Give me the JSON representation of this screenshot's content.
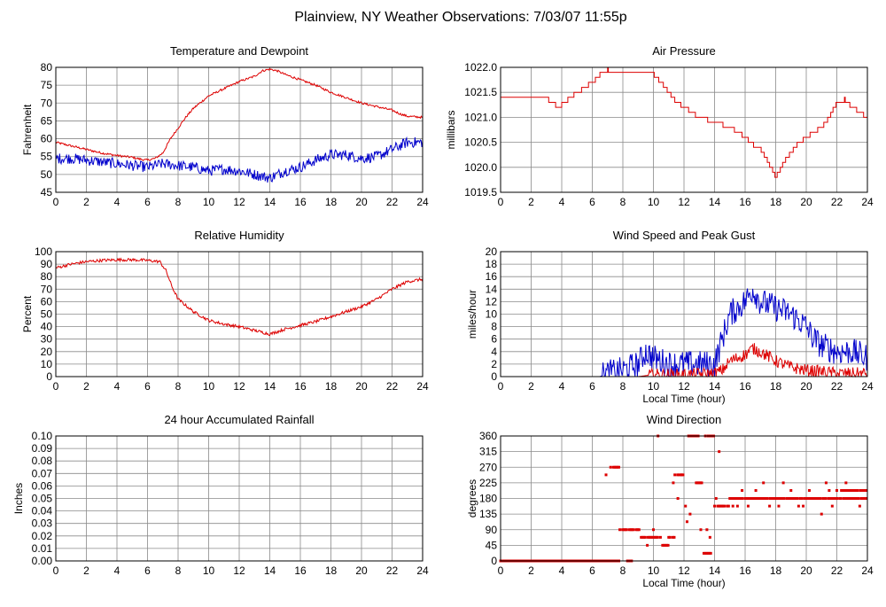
{
  "page_title": "Plainview, NY Weather Observations: 7/03/07 11:55p",
  "colors": {
    "primary": "#dd0000",
    "secondary": "#0000cc",
    "grid": "#8a8a8a",
    "frame": "#000000"
  },
  "chart_data": [
    {
      "id": "temp",
      "type": "line",
      "title": "Temperature and Dewpoint",
      "xlabel": "",
      "ylabel": "Fahrenheit",
      "xlim": [
        0,
        24
      ],
      "ylim": [
        45,
        80
      ],
      "xticks": [
        0,
        2,
        4,
        6,
        8,
        10,
        12,
        14,
        16,
        18,
        20,
        22,
        24
      ],
      "yticks": [
        45,
        50,
        55,
        60,
        65,
        70,
        75,
        80
      ],
      "ytick_labels": [
        "45",
        "50",
        "55",
        "60",
        "65",
        "70",
        "75",
        "80"
      ],
      "series": [
        {
          "color": "#dd0000",
          "noise": 0.3,
          "x": [
            0,
            1,
            2,
            3,
            4,
            5,
            5.5,
            6,
            6.5,
            7,
            7.5,
            8,
            8.5,
            9,
            10,
            11,
            12,
            13,
            13.5,
            14,
            14.5,
            15,
            16,
            17,
            18,
            19,
            20,
            21,
            22,
            22.5,
            23,
            24
          ],
          "y": [
            59,
            58,
            57,
            56,
            55.3,
            54.8,
            54.3,
            54,
            54.5,
            56,
            60,
            63,
            66,
            68.5,
            72,
            74,
            76,
            77.5,
            79,
            79.5,
            79,
            78,
            76.5,
            75,
            73,
            71.5,
            70,
            69,
            68,
            67,
            66.3,
            66
          ]
        },
        {
          "color": "#0000cc",
          "noise": 1.5,
          "x": [
            0,
            1,
            2,
            3,
            4,
            5,
            6,
            7,
            8,
            9,
            10,
            11,
            12,
            13,
            14,
            15,
            16,
            17,
            18,
            19,
            20,
            21,
            22,
            23,
            24
          ],
          "y": [
            54.5,
            54.5,
            54,
            53.5,
            53,
            52.5,
            52,
            53,
            52.5,
            52,
            51,
            51.5,
            51,
            50,
            49,
            51,
            52,
            54,
            55.5,
            55.5,
            54.5,
            55,
            57,
            59,
            59
          ]
        }
      ]
    },
    {
      "id": "pressure",
      "type": "line",
      "title": "Air Pressure",
      "xlabel": "",
      "ylabel": "millibars",
      "xlim": [
        0,
        24
      ],
      "ylim": [
        1019.5,
        1022
      ],
      "xticks": [
        0,
        2,
        4,
        6,
        8,
        10,
        12,
        14,
        16,
        18,
        20,
        22,
        24
      ],
      "yticks": [
        1019.5,
        1020,
        1020.5,
        1021,
        1021.5,
        1022
      ],
      "ytick_labels": [
        "1019.5",
        "1020.0",
        "1020.5",
        "1021.0",
        "1021.5",
        "1022.0"
      ],
      "series": [
        {
          "color": "#dd0000",
          "step": 0.1,
          "x": [
            0,
            3,
            3.3,
            3.8,
            4.2,
            4.6,
            5,
            5.5,
            6,
            6.5,
            7,
            9,
            10,
            10.5,
            11,
            11.5,
            12,
            12.5,
            13,
            13.5,
            14,
            14.5,
            15,
            15.5,
            16,
            16.5,
            17,
            17.3,
            17.7,
            18,
            18.2,
            18.5,
            19,
            19.5,
            20,
            20.5,
            21,
            21.5,
            22,
            22.5,
            23,
            23.5,
            24
          ],
          "y": [
            1021.4,
            1021.4,
            1021.3,
            1021.2,
            1021.3,
            1021.4,
            1021.5,
            1021.6,
            1021.7,
            1021.85,
            1021.95,
            1021.9,
            1021.85,
            1021.7,
            1021.5,
            1021.3,
            1021.2,
            1021.1,
            1021,
            1020.95,
            1020.9,
            1020.85,
            1020.8,
            1020.7,
            1020.6,
            1020.45,
            1020.35,
            1020.2,
            1020,
            1019.8,
            1019.9,
            1020.1,
            1020.3,
            1020.5,
            1020.6,
            1020.7,
            1020.8,
            1021,
            1021.3,
            1021.35,
            1021.2,
            1021.1,
            1021
          ]
        }
      ]
    },
    {
      "id": "humidity",
      "type": "line",
      "title": "Relative Humidity",
      "xlabel": "",
      "ylabel": "Percent",
      "xlim": [
        0,
        24
      ],
      "ylim": [
        0,
        100
      ],
      "xticks": [
        0,
        2,
        4,
        6,
        8,
        10,
        12,
        14,
        16,
        18,
        20,
        22,
        24
      ],
      "yticks": [
        0,
        10,
        20,
        30,
        40,
        50,
        60,
        70,
        80,
        90,
        100
      ],
      "ytick_labels": [
        "0",
        "10",
        "20",
        "30",
        "40",
        "50",
        "60",
        "70",
        "80",
        "90",
        "100"
      ],
      "series": [
        {
          "color": "#dd0000",
          "noise": 1.2,
          "x": [
            0,
            1,
            2,
            3,
            4,
            5,
            6,
            6.8,
            7.2,
            7.6,
            8,
            9,
            10,
            11,
            12,
            13,
            14,
            15,
            16,
            17,
            18,
            19,
            20,
            21,
            22,
            23,
            24
          ],
          "y": [
            87,
            90,
            92,
            93,
            93.5,
            93.5,
            93,
            92,
            85,
            72,
            62,
            52,
            45,
            42,
            40,
            37,
            34,
            38,
            41,
            44,
            48,
            52,
            56,
            62,
            70,
            76,
            78
          ]
        }
      ]
    },
    {
      "id": "wind",
      "type": "line",
      "title": "Wind Speed and Peak Gust",
      "xlabel": "Local Time (hour)",
      "ylabel": "miles/hour",
      "xlim": [
        0,
        24
      ],
      "ylim": [
        0,
        20
      ],
      "xticks": [
        0,
        2,
        4,
        6,
        8,
        10,
        12,
        14,
        16,
        18,
        20,
        22,
        24
      ],
      "yticks": [
        0,
        2,
        4,
        6,
        8,
        10,
        12,
        14,
        16,
        18,
        20
      ],
      "ytick_labels": [
        "0",
        "2",
        "4",
        "6",
        "8",
        "10",
        "12",
        "14",
        "16",
        "18",
        "20"
      ],
      "series": [
        {
          "color": "#0000cc",
          "noise": 2.2,
          "floor": 0,
          "x": [
            0,
            6.5,
            7,
            8,
            9,
            9.5,
            10,
            11,
            12,
            13,
            14,
            14.5,
            15,
            16,
            16.5,
            17,
            18,
            19,
            20,
            20.5,
            21,
            22,
            23,
            24
          ],
          "y": [
            0,
            0,
            0.5,
            1,
            2,
            4,
            3,
            2,
            2,
            2,
            2,
            6,
            10,
            12,
            14,
            12,
            11,
            10,
            8,
            6,
            5,
            4,
            4,
            3
          ]
        },
        {
          "color": "#dd0000",
          "noise": 1.0,
          "floor": 0,
          "x": [
            0,
            9,
            10,
            12,
            14,
            14.5,
            15,
            16,
            16.5,
            17,
            18,
            19,
            20,
            21,
            22,
            23,
            24
          ],
          "y": [
            0,
            0,
            0.3,
            0.3,
            0.5,
            1,
            2.5,
            3.5,
            4.5,
            4,
            2.5,
            1.5,
            1,
            0.8,
            0.5,
            0.5,
            0.5
          ]
        }
      ]
    },
    {
      "id": "rain",
      "type": "line",
      "title": "24 hour Accumulated Rainfall",
      "xlabel": "",
      "ylabel": "Inches",
      "xlim": [
        0,
        24
      ],
      "ylim": [
        0,
        0.1
      ],
      "xticks": [
        0,
        2,
        4,
        6,
        8,
        10,
        12,
        14,
        16,
        18,
        20,
        22,
        24
      ],
      "yticks": [
        0,
        0.01,
        0.02,
        0.03,
        0.04,
        0.05,
        0.06,
        0.07,
        0.08,
        0.09,
        0.1
      ],
      "ytick_labels": [
        "0.00",
        "0.01",
        "0.02",
        "0.03",
        "0.04",
        "0.05",
        "0.06",
        "0.07",
        "0.08",
        "0.09",
        "0.10"
      ],
      "series": [
        {
          "color": "#dd0000",
          "x": [
            0,
            24
          ],
          "y": [
            0,
            0
          ]
        }
      ]
    },
    {
      "id": "winddir",
      "type": "scatter",
      "title": "Wind Direction",
      "xlabel": "Local Time (hour)",
      "ylabel": "degrees",
      "xlim": [
        0,
        24
      ],
      "ylim": [
        0,
        360
      ],
      "xticks": [
        0,
        2,
        4,
        6,
        8,
        10,
        12,
        14,
        16,
        18,
        20,
        22,
        24
      ],
      "yticks": [
        0,
        45,
        90,
        135,
        180,
        225,
        270,
        315,
        360
      ],
      "ytick_labels": [
        "0",
        "45",
        "90",
        "135",
        "180",
        "225",
        "270",
        "315",
        "360"
      ],
      "series": [
        {
          "color": "#dd0000",
          "segments": [
            {
              "x0": 0,
              "x1": 7.8,
              "y": 0
            },
            {
              "x0": 7.2,
              "x1": 7.8,
              "y": 270
            },
            {
              "x0": 7.8,
              "x1": 9.1,
              "y": 90
            },
            {
              "x0": 8.3,
              "x1": 8.6,
              "y": 0
            },
            {
              "x0": 9.2,
              "x1": 10.5,
              "y": 68
            },
            {
              "x0": 10.6,
              "x1": 11.0,
              "y": 45
            },
            {
              "x0": 11.0,
              "x1": 11.4,
              "y": 68
            },
            {
              "x0": 11.4,
              "x1": 12.0,
              "y": 248
            },
            {
              "x0": 12.3,
              "x1": 13.0,
              "y": 360
            },
            {
              "x0": 12.8,
              "x1": 13.2,
              "y": 225
            },
            {
              "x0": 13.4,
              "x1": 14.0,
              "y": 360
            },
            {
              "x0": 13.3,
              "x1": 13.9,
              "y": 22
            },
            {
              "x0": 14.2,
              "x1": 15.0,
              "y": 158
            },
            {
              "x0": 15.0,
              "x1": 16.0,
              "y": 180
            },
            {
              "x0": 16.0,
              "x1": 18.0,
              "y": 180
            },
            {
              "x0": 18.0,
              "x1": 20.0,
              "y": 180
            },
            {
              "x0": 20.0,
              "x1": 22.0,
              "y": 180
            },
            {
              "x0": 22.3,
              "x1": 24.0,
              "y": 203
            },
            {
              "x0": 22.0,
              "x1": 24.0,
              "y": 180
            }
          ],
          "x": [
            6.9,
            10.3,
            11.3,
            11.6,
            11.8,
            12.1,
            12.2,
            12.4,
            13.1,
            13.5,
            13.7,
            14.1,
            14.3,
            15.2,
            15.8,
            16.7,
            17.2,
            17.6,
            18.5,
            19.0,
            19.5,
            20.2,
            20.6,
            21.0,
            21.3,
            21.7,
            22.0,
            22.6,
            23.1,
            23.5,
            10.0,
            9.6,
            14.0,
            15.5,
            16.2,
            18.2,
            19.8,
            21.5
          ],
          "y": [
            248,
            360,
            225,
            180,
            248,
            158,
            113,
            135,
            90,
            90,
            68,
            180,
            315,
            158,
            203,
            203,
            225,
            158,
            225,
            203,
            158,
            203,
            180,
            135,
            225,
            158,
            203,
            225,
            180,
            158,
            90,
            45,
            158,
            158,
            158,
            158,
            158,
            203
          ]
        }
      ]
    }
  ]
}
